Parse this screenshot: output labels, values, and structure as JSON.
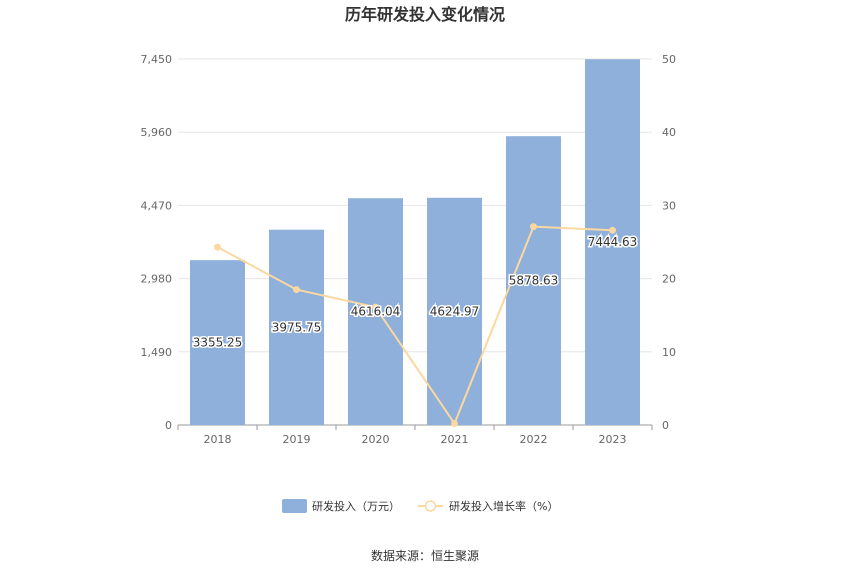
{
  "chart_data": {
    "type": "bar",
    "title": "历年研发投入变化情况",
    "categories": [
      "2018",
      "2019",
      "2020",
      "2021",
      "2022",
      "2023"
    ],
    "series": [
      {
        "name": "研发投入（万元）",
        "type": "bar",
        "axis": "left",
        "color": "#8eb0db",
        "values": [
          3355.25,
          3975.75,
          4616.04,
          4624.97,
          5878.63,
          7444.63
        ],
        "labels": [
          "3355.25",
          "3975.75",
          "4616.04",
          "4624.97",
          "5878.63",
          "7444.63"
        ]
      },
      {
        "name": "研发投入增长率（%）",
        "type": "line",
        "axis": "right",
        "color": "#fad8a0",
        "values": [
          24.3,
          18.5,
          16.1,
          0.2,
          27.1,
          26.6
        ]
      }
    ],
    "y_left": {
      "min": 0,
      "max": 7450,
      "ticks": [
        "0",
        "1,490",
        "2,980",
        "4,470",
        "5,960",
        "7,450"
      ]
    },
    "y_right": {
      "min": 0,
      "max": 50,
      "ticks": [
        "0",
        "10",
        "20",
        "30",
        "40",
        "50"
      ]
    },
    "grid": true,
    "legend_position": "bottom"
  },
  "source_text": "数据来源：恒生聚源"
}
